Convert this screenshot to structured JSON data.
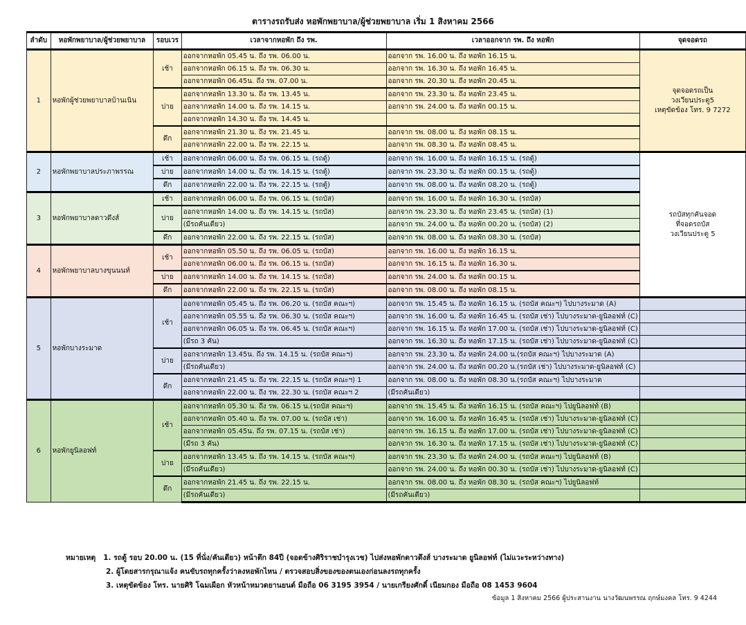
{
  "title": "ตารางรถรับส่ง หอพักพยาบาล/ผู้ช่วยพยาบาล เริ่ม 1 สิงหาคม  2566",
  "headers": {
    "no": "ลำดับ",
    "dorm": "หอพักพยาบาล/ผู้ช่วยพยาบาล",
    "shift": "รอบเวร",
    "to_hosp": "เวลาจากหอพัก ถึง รพ.",
    "from_hosp": "เวลาออกจาก รพ. ถึง หอพัก",
    "park": "จุดจอดรถ"
  },
  "shift_labels": {
    "morning": "เช้า",
    "afternoon": "บ่าย",
    "night": "ดึก"
  },
  "parking": {
    "p1": [
      "จุดจอดรถเป็น",
      "วงเวียนประตู5",
      "เหตุขัดข้อง โทร. 9 7272"
    ],
    "p2": [
      "รถบัสทุกคันจอด",
      "ที่จอดรถบัส",
      "วงเวียนประตู 5"
    ]
  },
  "colors": {
    "dorm1": "#fdf0cc",
    "dorm2": "#deebf6",
    "dorm3": "#e4efdb",
    "dorm4": "#fbe2d6",
    "dorm5": "#dadff0",
    "dorm6": "#c6e0b4"
  },
  "groups": [
    {
      "no": "1",
      "name": "หอพักผู้ช่วยพยาบาลบ้านเนิน",
      "shifts": [
        {
          "rows": [
            [
              "ออกจากหอพัก 05.45 น. ถึง รพ. 06.00 น.",
              "ออกจาก รพ. 16.00 น. ถึง หอพัก 16.15 น."
            ],
            [
              "ออกจากหอพัก 06.15 น. ถึง รพ. 06.30 น.",
              "ออกจาก รพ. 16.30 น. ถึง หอพัก 16.45 น."
            ],
            [
              "ออกจากหอพัก 06.45น. ถึง รพ. 07.00 น.",
              "ออกจาก รพ. 20.30 น. ถึง หอพัก 20.45 น."
            ]
          ]
        },
        {
          "rows": [
            [
              "ออกจากหอพัก 13.30 น. ถึง รพ. 13.45 น.",
              "ออกจาก รพ. 23.30 น. ถึง หอพัก 23.45 น."
            ],
            [
              "ออกจากหอพัก 14.00 น. ถึง รพ. 14.15 น.",
              "ออกจาก รพ. 24.00 น. ถึง หอพัก 00.15 น."
            ],
            [
              "ออกจากหอพัก 14.30 น. ถึง รพ. 14.45 น.",
              ""
            ]
          ]
        },
        {
          "rows": [
            [
              "ออกจากหอพัก 21.30 น. ถึง รพ. 21.45 น.",
              "ออกจาก รพ. 08.00 น. ถึง หอพัก 08.15 น."
            ],
            [
              "ออกจากหอพัก 22.00 น. ถึง รพ. 22.15 น.",
              "ออกจาก รพ. 08.30 น. ถึง หอพัก 08.45 น."
            ]
          ]
        }
      ]
    },
    {
      "no": "2",
      "name": "หอพักพยาบาลประภาพรรณ",
      "shifts": [
        {
          "rows": [
            [
              "ออกจากหอพัก 06.00 น. ถึง รพ. 06.15 น. (รถตู้)",
              "ออกจาก รพ. 16.00 น. ถึง หอพัก 16.15 น. (รถตู้)"
            ]
          ]
        },
        {
          "rows": [
            [
              "ออกจากหอพัก 14.00 น. ถึง รพ. 14.15 น. (รถตู้)",
              "ออกจาก รพ. 23.30 น. ถึง หอพัก 00.15 น. (รถตู้)"
            ]
          ]
        },
        {
          "rows": [
            [
              "ออกจากหอพัก 22.00 น. ถึง รพ. 22.15 น. (รถตู้)",
              "ออกจาก รพ. 08.00 น. ถึง หอพัก 08.20 น. (รถตู้)"
            ]
          ]
        }
      ]
    },
    {
      "no": "3",
      "name": "หอพักพยาบาลดาวดึงส์",
      "shifts": [
        {
          "rows": [
            [
              "ออกจากหอพัก 06.00 น. ถึง รพ. 06.15 น. (รถบัส)",
              "ออกจาก รพ. 16.00 น. ถึง หอพัก 16.30 น. (รถบัส)"
            ]
          ]
        },
        {
          "rows": [
            [
              "ออกจากหอพัก 14.00 น. ถึง รพ. 14.15 น. (รถบัส)",
              "ออกจาก รพ. 23.30 น. ถึง หอพัก 23.45 น. (รถบัส)  (1)"
            ],
            [
              "(มีรถคันเดียว)",
              "ออกจาก รพ. 24.00 น. ถึง หอพัก 00.20 น. (รถบัส)   (2)"
            ]
          ]
        },
        {
          "rows": [
            [
              "ออกจากหอพัก 22.00 น. ถึง รพ. 22.15 น. (รถบัส)",
              "ออกจาก รพ. 08.00 น. ถึง หอพัก 08.30 น. (รถบัส)"
            ]
          ]
        }
      ]
    },
    {
      "no": "4",
      "name": "หอพักพยาบาลบางขุนนนท์",
      "shifts": [
        {
          "rows": [
            [
              "ออกจากหอพัก 05.50 น. ถึง รพ. 06.05 น. (รถบัส)",
              "ออกจาก รพ. 16.00 น. ถึง หอพัก 16.15 น."
            ],
            [
              "ออกจากหอพัก 06.00 น. ถึง รพ. 06.15 น. (รถบัส)",
              "ออกจาก รพ. 16.15 น. ถึง หอพัก 16.30 น."
            ]
          ]
        },
        {
          "rows": [
            [
              "ออกจากหอพัก 14.00 น. ถึง รพ. 14.15 น. (รถบัส)",
              "ออกจาก รพ. 24.00 น. ถึง หอพัก 00.15 น."
            ]
          ]
        },
        {
          "rows": [
            [
              "ออกจากหอพัก 22.00 น. ถึง รพ. 22.15 น. (รถบัส)",
              "ออกจาก รพ. 08.00 น. ถึง หอพัก 08.15 น."
            ]
          ]
        }
      ]
    },
    {
      "no": "5",
      "name": "หอพักบางระมาด",
      "shifts": [
        {
          "rows": [
            [
              "ออกจากหอพัก 05.45 น. ถึง รพ. 06.20 น. (รถบัส คณะฯ)",
              "ออกจาก รพ. 15.45 น. ถึง หอพัก 16.15 น. (รถบัส คณะฯ) ไปบางระมาด (A)"
            ],
            [
              "ออกจากหอพัก 05.55 น. ถึง รพ. 06.30 น. (รถบัส คณะฯ)",
              "ออกจาก รพ. 16.00 น. ถึง หอพัก 16.45 น. (รถบัส เช่า) ไปบางระมาด-ยูนิลอฟท์ (C)"
            ],
            [
              "ออกจากหอพัก 06.05 น. ถึง รพ. 06.45 น. (รถบัส คณะฯ)",
              "ออกจาก รพ. 16.15 น. ถึง หอพัก 17.00 น. (รถบัส เช่า) ไปบางระมาด-ยูนิลอฟท์ (C)"
            ],
            [
              "(มีรถ 3 คัน)",
              "ออกจาก รพ. 16.30 น. ถึง หอพัก 17.15 น. (รถบัส เช่า) ไปบางระมาด-ยูนิลอฟท์ (C)"
            ]
          ]
        },
        {
          "rows": [
            [
              "ออกจากหอพัก 13.45น. ถึง รพ. 14.15 น. (รถบัส คณะฯ)",
              "ออกจาก รพ. 23.30 น. ถึง หอพัก 24.00 น.(รถบัส คณะฯ) ไปบางระมาด (A)"
            ],
            [
              "(มีรถคันเดียว)",
              "ออกจาก รพ. 24.00 น. ถึง หอพัก 00.20 น.(รถบัส เช่า) ไปบางระมาด-ยูนิลอฟท์ (C)"
            ]
          ]
        },
        {
          "rows": [
            [
              "ออกจากหอพัก 21.45 น. ถึง รพ. 22.15 น. (รถบัส คณะฯ) 1",
              "ออกจาก รพ. 08.00 น. ถึง หอพัก 08.30 น.(รถบัส คณะฯ) ไปบางระมาด"
            ],
            [
              "ออกจากหอพัก 22.00 น. ถึง รพ. 22.30 น. (รถบัส คณะฯ 2",
              "(มีรถคันเดียว)"
            ]
          ]
        }
      ]
    },
    {
      "no": "6",
      "name": "หอพักยูนิลอฟท์",
      "shifts": [
        {
          "rows": [
            [
              "ออกจากหอพัก 05.30 น. ถึง รพ. 06.15 น.(รถบัส คณะฯ)",
              "ออกจาก รพ. 15.45 น. ถึง หอพัก 16.15 น. (รถบัส คณะฯ) ไปยูนิลอฟท์ (B)"
            ],
            [
              "ออกจากหอพัก 05.40 น. ถึง รพ. 07.00 น. (รถบัส เช่า)",
              "ออกจาก รพ. 16.00 น. ถึง หอพัก 16.45 น. (รถบัส เช่า) ไปบางระมาด-ยูนิลอฟท์ (C)"
            ],
            [
              "ออกจากหอพัก 05.45น. ถึง รพ. 07.15 น. (รถบัส เช่า)",
              "ออกจาก รพ. 16.15 น. ถึง หอพัก 17.00 น. (รถบัส เช่า) ไปบางระมาด-ยูนิลอฟท์ (C)"
            ],
            [
              "(มีรถ 3 คัน)",
              "ออกจาก รพ. 16.30 น. ถึง หอพัก 17.15 น. (รถบัส เช่า) ไปบางระมาด-ยูนิลอฟท์ (C)"
            ]
          ]
        },
        {
          "rows": [
            [
              "ออกจากหอพัก 13.45 น. ถึง รพ. 14.15 น. (รถบัส คณะฯ)",
              "ออกจาก รพ. 23.30 น. ถึง หอพัก 24.00 น. (รถบัส คณะฯ) ไปยูนิลอฟท์ (B)"
            ],
            [
              "(มีรถคันเดียว)",
              "ออกจาก รพ. 24.00 น. ถึง หอพัก 00.30 น. (รถบัส เช่า) ไปบางระมาด-ยูนิลอฟท์ (C)"
            ]
          ]
        },
        {
          "rows": [
            [
              "ออกจากหอพัก 21.45 น. ถึง รพ. 22.15 น.",
              "ออกจาก รพ. 08.00 น. ถึง หอพัก 08.30 น.  (รถบัส คณะฯ) ไปยูนิลอฟท์"
            ],
            [
              "(มีรถคันเดียว)",
              "(มีรถคันเดียว)"
            ]
          ]
        }
      ]
    }
  ],
  "notes": {
    "label": "หมายเหตุ",
    "n1": "1. รถตู้ รอบ 20.00 น. (15 ที่นั่ง/คันเดียว)  หน้าตึก 84ปี (จอดข้างศิริราชบำรุงเวช)   ไปส่งหอพักดาวดึงส์ บางระมาด ยูนิลอฟท์ (ไม่แวะระหว่างทาง)",
    "n2": "2. ผู้โดยสารกรุณาแจ้ง คนขับรถทุกครั้งว่าลงหอพักไหน  / ตรวจสอบสิ่งของของตนเองก่อนลงรถทุกครั้ง",
    "n3": "3. เหตุขัดข้อง โทร.  นายศิริ  โฉมเผือก  หัวหน้าหมวดยานยนต์ มือถือ  06 3195 3954  /   นายเกรียงศักดิ์   เนียมกอง  มือถือ  08 1453 9604"
  },
  "footer": "ข้อมูล  1 สิงหาคม  2566  ผู้ประสานงาน นางวัฒนพรรณ  ฤกษ์มงคล  โทร. 9 4244"
}
